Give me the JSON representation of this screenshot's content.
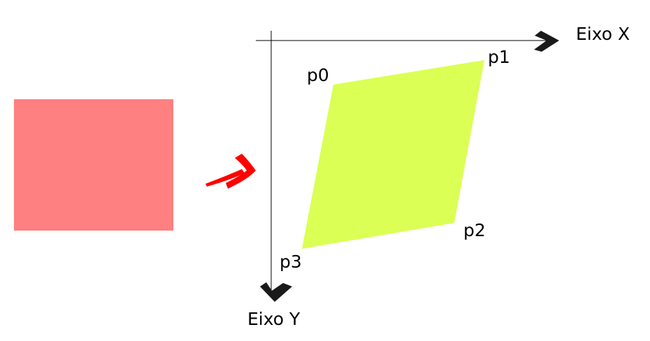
{
  "colors": {
    "source_rect": "#ff8080",
    "parallelogram": "#dbff55",
    "transform_arrow": "#ff0000",
    "axis_line": "#000000",
    "axis_arrowhead": "#1a1a1a",
    "label_text": "#000000"
  },
  "icons": {
    "transform_arrow": "curved-arrow-icon",
    "x_axis_head": "arrowhead-right-icon",
    "y_axis_head": "arrowhead-down-icon"
  },
  "axes": {
    "x_label": "Eixo X",
    "y_label": "Eixo Y"
  },
  "points": {
    "p0": "p0",
    "p1": "p1",
    "p2": "p2",
    "p3": "p3"
  }
}
